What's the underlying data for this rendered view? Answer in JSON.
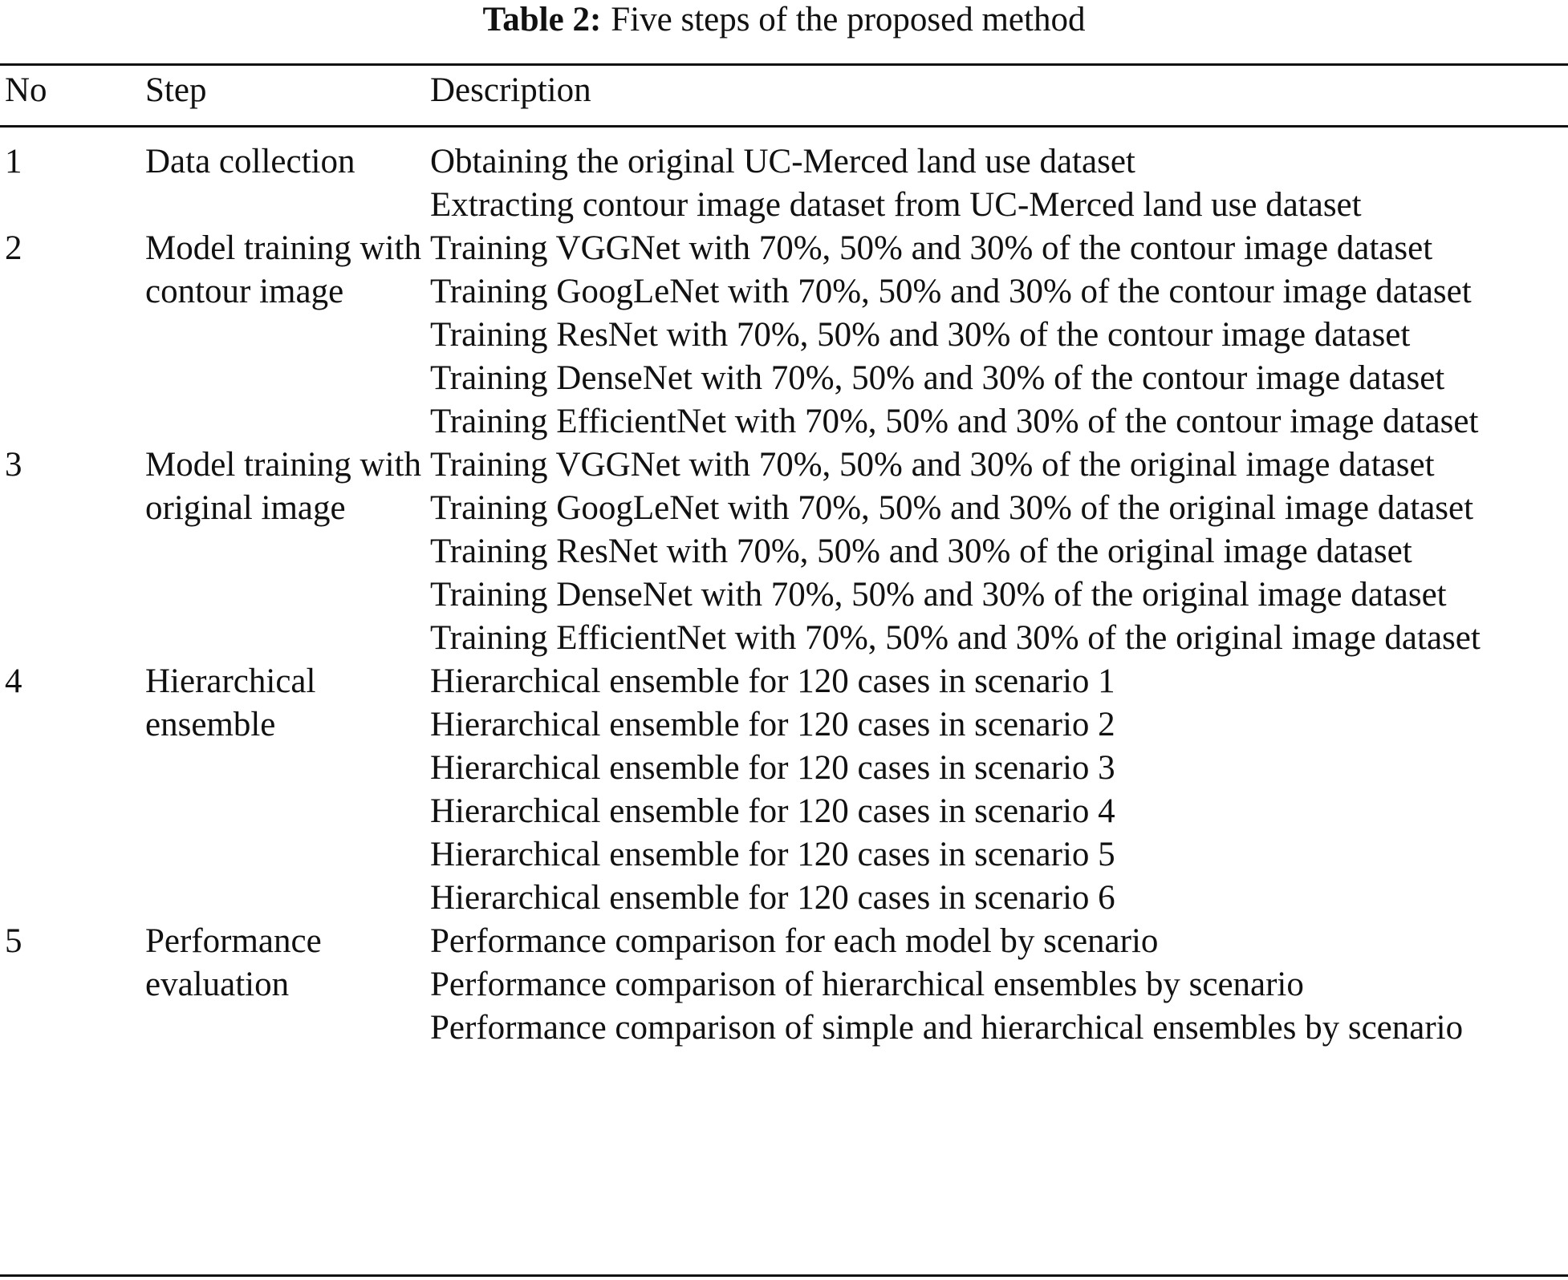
{
  "title": {
    "label": "Table 2:",
    "text": "Five steps of the proposed method"
  },
  "columns": [
    "No",
    "Step",
    "Description"
  ],
  "rows": [
    {
      "no": "1",
      "step": "Data collection",
      "items": [
        "Obtaining the original UC-Merced land use dataset",
        "Extracting contour image dataset from UC-Merced land use dataset"
      ]
    },
    {
      "no": "2",
      "step": "Model training with contour image",
      "items": [
        "Training VGGNet with 70%, 50% and 30% of the contour image dataset",
        "Training GoogLeNet with 70%, 50% and 30% of the contour image dataset",
        "Training ResNet with 70%, 50% and 30% of the contour image dataset",
        "Training DenseNet with 70%, 50% and 30% of the contour image dataset",
        "Training EfficientNet with 70%, 50% and 30% of the contour image dataset"
      ]
    },
    {
      "no": "3",
      "step": "Model training with original image",
      "items": [
        "Training VGGNet with 70%, 50% and 30% of the original image dataset",
        "Training GoogLeNet with 70%, 50% and 30% of the original image dataset",
        "Training ResNet with 70%, 50% and 30% of the original image dataset",
        "Training DenseNet with 70%, 50% and 30% of the original image dataset",
        "Training EfficientNet with 70%, 50% and 30% of the original image dataset"
      ]
    },
    {
      "no": "4",
      "step": "Hierarchical ensemble",
      "items": [
        "Hierarchical ensemble for 120 cases in scenario 1",
        "Hierarchical ensemble for 120 cases in scenario 2",
        "Hierarchical ensemble for 120 cases in scenario 3",
        "Hierarchical ensemble for 120 cases in scenario 4",
        "Hierarchical ensemble for 120 cases in scenario 5",
        "Hierarchical ensemble for 120 cases in scenario 6"
      ]
    },
    {
      "no": "5",
      "step": "Performance evaluation",
      "items": [
        "Performance comparison for each model by scenario",
        "Performance comparison of hierarchical ensembles by scenario",
        "Performance comparison of simple and hierarchical ensembles by scenario"
      ]
    }
  ]
}
